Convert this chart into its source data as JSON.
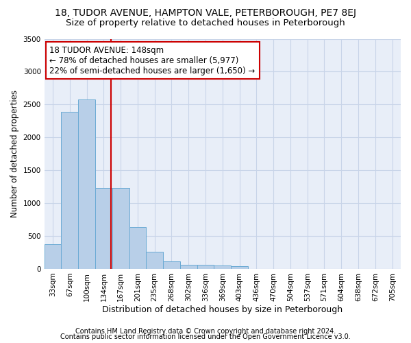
{
  "title": "18, TUDOR AVENUE, HAMPTON VALE, PETERBOROUGH, PE7 8EJ",
  "subtitle": "Size of property relative to detached houses in Peterborough",
  "xlabel": "Distribution of detached houses by size in Peterborough",
  "ylabel": "Number of detached properties",
  "footnote1": "Contains HM Land Registry data © Crown copyright and database right 2024.",
  "footnote2": "Contains public sector information licensed under the Open Government Licence v3.0.",
  "categories": [
    "33sqm",
    "67sqm",
    "100sqm",
    "134sqm",
    "167sqm",
    "201sqm",
    "235sqm",
    "268sqm",
    "302sqm",
    "336sqm",
    "369sqm",
    "403sqm",
    "436sqm",
    "470sqm",
    "504sqm",
    "537sqm",
    "571sqm",
    "604sqm",
    "638sqm",
    "672sqm",
    "705sqm"
  ],
  "values": [
    380,
    2390,
    2580,
    1230,
    1230,
    640,
    260,
    115,
    65,
    60,
    55,
    45,
    0,
    0,
    0,
    0,
    0,
    0,
    0,
    0,
    0
  ],
  "bar_color": "#b8cfe8",
  "bar_edge_color": "#6aaad4",
  "grid_color": "#c8d4e8",
  "background_color": "#e8eef8",
  "vline_color": "#cc0000",
  "annotation_text": "18 TUDOR AVENUE: 148sqm\n← 78% of detached houses are smaller (5,977)\n22% of semi-detached houses are larger (1,650) →",
  "annotation_box_color": "#ffffff",
  "annotation_box_edge": "#cc0000",
  "annotation_fontsize": 8.5,
  "ylim": [
    0,
    3500
  ],
  "yticks": [
    0,
    500,
    1000,
    1500,
    2000,
    2500,
    3000,
    3500
  ],
  "title_fontsize": 10,
  "subtitle_fontsize": 9.5,
  "xlabel_fontsize": 9,
  "ylabel_fontsize": 8.5,
  "tick_fontsize": 7.5,
  "footnote_fontsize": 7
}
